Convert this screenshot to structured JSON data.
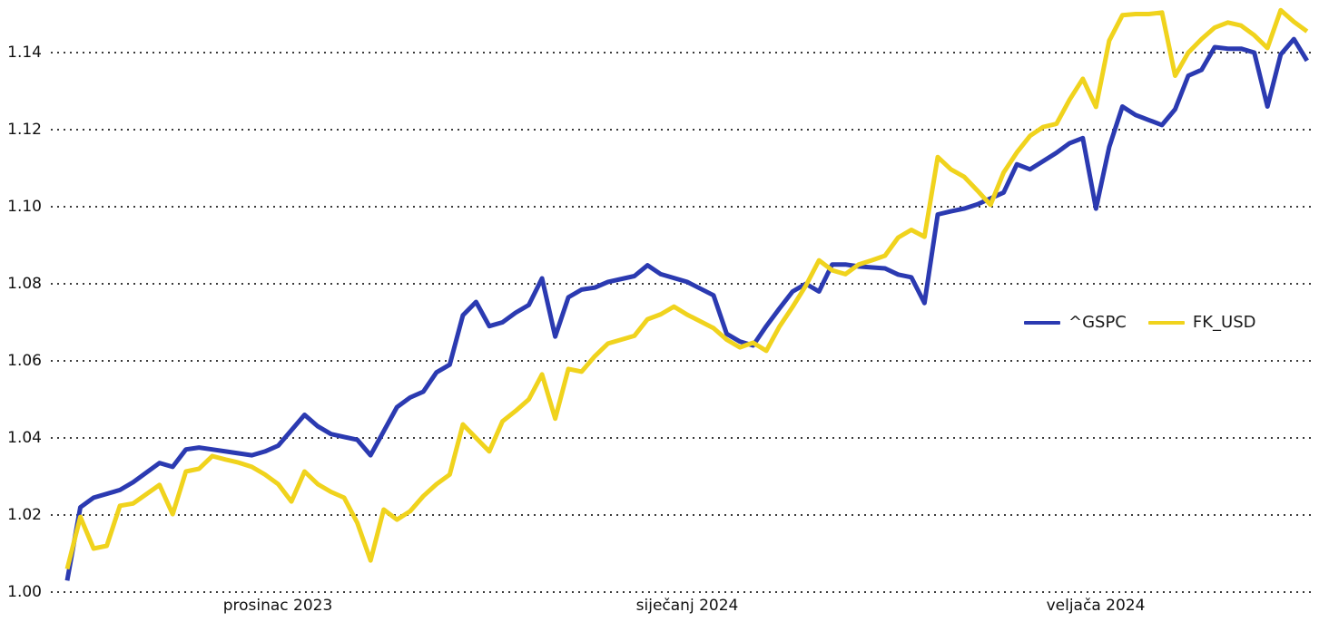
{
  "chart_data": {
    "type": "line",
    "title": "",
    "xlabel": "",
    "ylabel": "",
    "grid": "horizontal-dotted",
    "background": "#ffffff",
    "x_axis": {
      "unit": "calendar-day offset from first observation (mid-November 2023)",
      "ticks": [
        {
          "day": 16,
          "label": "prosinac 2023"
        },
        {
          "day": 47,
          "label": "siječanj 2024"
        },
        {
          "day": 78,
          "label": "veljača 2024"
        }
      ]
    },
    "y_axis": {
      "min": 1.0,
      "max": 1.1536,
      "ticks": [
        {
          "value": 1.0,
          "label": "1.00"
        },
        {
          "value": 1.02,
          "label": "1.02"
        },
        {
          "value": 1.04,
          "label": "1.04"
        },
        {
          "value": 1.06,
          "label": "1.06"
        },
        {
          "value": 1.08,
          "label": "1.08"
        },
        {
          "value": 1.1,
          "label": "1.10"
        },
        {
          "value": 1.12,
          "label": "1.12"
        },
        {
          "value": 1.14,
          "label": "1.14"
        }
      ]
    },
    "legend": {
      "position": "center-right"
    },
    "series": [
      {
        "name": "^GSPC",
        "color": "#2b3ab1",
        "points": [
          [
            0,
            1.003
          ],
          [
            1,
            1.022
          ],
          [
            2,
            1.0245
          ],
          [
            4,
            1.0265
          ],
          [
            5,
            1.0285
          ],
          [
            7,
            1.0335
          ],
          [
            8,
            1.0325
          ],
          [
            9,
            1.037
          ],
          [
            10,
            1.0375
          ],
          [
            11,
            1.037
          ],
          [
            14,
            1.0355
          ],
          [
            15,
            1.0365
          ],
          [
            16,
            1.038
          ],
          [
            18,
            1.046
          ],
          [
            19,
            1.043
          ],
          [
            20,
            1.041
          ],
          [
            22,
            1.0395
          ],
          [
            23,
            1.0355
          ],
          [
            25,
            1.048
          ],
          [
            26,
            1.0505
          ],
          [
            27,
            1.052
          ],
          [
            28,
            1.057
          ],
          [
            29,
            1.059
          ],
          [
            30,
            1.0718
          ],
          [
            31,
            1.0753
          ],
          [
            32,
            1.069
          ],
          [
            33,
            1.07
          ],
          [
            34,
            1.0725
          ],
          [
            35,
            1.0745
          ],
          [
            36,
            1.0814
          ],
          [
            37,
            1.0663
          ],
          [
            38,
            1.0765
          ],
          [
            39,
            1.0785
          ],
          [
            40,
            1.079
          ],
          [
            41,
            1.0805
          ],
          [
            43,
            1.082
          ],
          [
            44,
            1.0848
          ],
          [
            45,
            1.0825
          ],
          [
            47,
            1.0805
          ],
          [
            49,
            1.077
          ],
          [
            50,
            1.067
          ],
          [
            51,
            1.065
          ],
          [
            52,
            1.064
          ],
          [
            53,
            1.069
          ],
          [
            54,
            1.0736
          ],
          [
            55,
            1.078
          ],
          [
            56,
            1.08
          ],
          [
            57,
            1.078
          ],
          [
            58,
            1.085
          ],
          [
            59,
            1.085
          ],
          [
            60,
            1.0845
          ],
          [
            62,
            1.084
          ],
          [
            63,
            1.0824
          ],
          [
            64,
            1.0817
          ],
          [
            65,
            1.075
          ],
          [
            66,
            1.098
          ],
          [
            67,
            1.0988
          ],
          [
            68,
            1.0995
          ],
          [
            69,
            1.1006
          ],
          [
            71,
            1.1037
          ],
          [
            72,
            1.111
          ],
          [
            73,
            1.1097
          ],
          [
            75,
            1.114
          ],
          [
            76,
            1.1165
          ],
          [
            77,
            1.1178
          ],
          [
            78,
            1.0995
          ],
          [
            79,
            1.1155
          ],
          [
            80,
            1.126
          ],
          [
            81,
            1.1238
          ],
          [
            82,
            1.1225
          ],
          [
            83,
            1.1212
          ],
          [
            84,
            1.1253
          ],
          [
            85,
            1.134
          ],
          [
            86,
            1.1355
          ],
          [
            87,
            1.1414
          ],
          [
            88,
            1.141
          ],
          [
            89,
            1.141
          ],
          [
            90,
            1.14
          ],
          [
            91,
            1.126
          ],
          [
            92,
            1.1395
          ],
          [
            93,
            1.1435
          ],
          [
            94,
            1.1379
          ]
        ]
      },
      {
        "name": "FK_USD",
        "color": "#f0d31d",
        "points": [
          [
            0,
            1.006
          ],
          [
            1,
            1.0195
          ],
          [
            2,
            1.0113
          ],
          [
            3,
            1.012
          ],
          [
            4,
            1.0224
          ],
          [
            5,
            1.023
          ],
          [
            7,
            1.0278
          ],
          [
            8,
            1.0202
          ],
          [
            9,
            1.0313
          ],
          [
            10,
            1.032
          ],
          [
            11,
            1.0353
          ],
          [
            12,
            1.0344
          ],
          [
            13,
            1.0336
          ],
          [
            14,
            1.0325
          ],
          [
            15,
            1.0305
          ],
          [
            16,
            1.028
          ],
          [
            17,
            1.0235
          ],
          [
            18,
            1.0313
          ],
          [
            19,
            1.028
          ],
          [
            20,
            1.026
          ],
          [
            21,
            1.0245
          ],
          [
            22,
            1.0179
          ],
          [
            23,
            1.0082
          ],
          [
            24,
            1.0214
          ],
          [
            25,
            1.0188
          ],
          [
            26,
            1.021
          ],
          [
            27,
            1.0249
          ],
          [
            28,
            1.028
          ],
          [
            29,
            1.0305
          ],
          [
            30,
            1.0435
          ],
          [
            31,
            1.04
          ],
          [
            32,
            1.0365
          ],
          [
            33,
            1.0443
          ],
          [
            34,
            1.047
          ],
          [
            35,
            1.05
          ],
          [
            36,
            1.0565
          ],
          [
            37,
            1.045
          ],
          [
            38,
            1.0579
          ],
          [
            39,
            1.0572
          ],
          [
            40,
            1.0612
          ],
          [
            41,
            1.0645
          ],
          [
            43,
            1.0665
          ],
          [
            44,
            1.0708
          ],
          [
            45,
            1.0721
          ],
          [
            46,
            1.0741
          ],
          [
            47,
            1.072
          ],
          [
            49,
            1.0685
          ],
          [
            50,
            1.0655
          ],
          [
            51,
            1.0635
          ],
          [
            52,
            1.0647
          ],
          [
            53,
            1.0626
          ],
          [
            54,
            1.0689
          ],
          [
            55,
            1.074
          ],
          [
            56,
            1.0795
          ],
          [
            57,
            1.0861
          ],
          [
            58,
            1.0835
          ],
          [
            59,
            1.0825
          ],
          [
            60,
            1.085
          ],
          [
            61,
            1.0861
          ],
          [
            62,
            1.0873
          ],
          [
            63,
            1.092
          ],
          [
            64,
            1.094
          ],
          [
            65,
            1.0922
          ],
          [
            66,
            1.1129
          ],
          [
            67,
            1.1097
          ],
          [
            68,
            1.1078
          ],
          [
            69,
            1.1042
          ],
          [
            70,
            1.1005
          ],
          [
            71,
            1.1089
          ],
          [
            72,
            1.1141
          ],
          [
            73,
            1.1184
          ],
          [
            74,
            1.1207
          ],
          [
            75,
            1.1215
          ],
          [
            76,
            1.1278
          ],
          [
            77,
            1.1332
          ],
          [
            78,
            1.1259
          ],
          [
            79,
            1.1431
          ],
          [
            80,
            1.1497
          ],
          [
            81,
            1.15
          ],
          [
            82,
            1.15
          ],
          [
            83,
            1.1504
          ],
          [
            84,
            1.134
          ],
          [
            85,
            1.14
          ],
          [
            86,
            1.1435
          ],
          [
            87,
            1.1465
          ],
          [
            88,
            1.1478
          ],
          [
            89,
            1.147
          ],
          [
            90,
            1.1445
          ],
          [
            91,
            1.1412
          ],
          [
            92,
            1.151
          ],
          [
            93,
            1.148
          ],
          [
            94,
            1.1455
          ]
        ]
      }
    ]
  }
}
